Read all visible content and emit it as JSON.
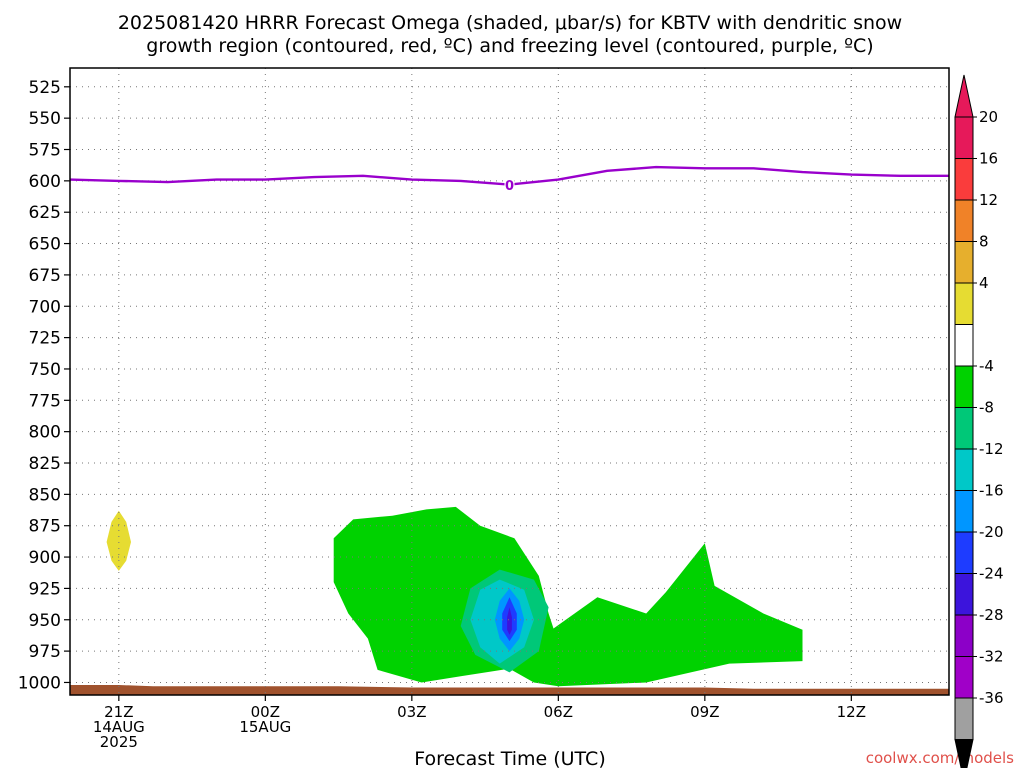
{
  "chart_data": {
    "type": "contour",
    "title_lines": [
      "2025081420 HRRR Forecast Omega (shaded, μbar/s) for KBTV with dendritic snow",
      "growth region (contoured, red, ºC) and freezing level (contoured, purple, ºC)"
    ],
    "xlabel": "Forecast Time (UTC)",
    "credit": "coolwx.com/models",
    "x_hours_range": [
      -1,
      17
    ],
    "y_pressure_range": [
      1010,
      510
    ],
    "y_ticks": [
      525,
      550,
      575,
      600,
      625,
      650,
      675,
      700,
      725,
      750,
      775,
      800,
      825,
      850,
      875,
      900,
      925,
      950,
      975,
      1000
    ],
    "y_tick_labels": [
      "525",
      "550",
      "575",
      "600",
      "625",
      "650",
      "675",
      "700",
      "725",
      "750",
      "775",
      "800",
      "825",
      "850",
      "875",
      "900",
      "925",
      "950",
      "975",
      "1000"
    ],
    "x_ticks": [
      {
        "hour": 0,
        "lines": [
          "21Z",
          "14AUG",
          "2025"
        ]
      },
      {
        "hour": 3,
        "lines": [
          "00Z",
          "15AUG"
        ]
      },
      {
        "hour": 6,
        "lines": [
          "03Z"
        ]
      },
      {
        "hour": 9,
        "lines": [
          "06Z"
        ]
      },
      {
        "hour": 12,
        "lines": [
          "09Z"
        ]
      },
      {
        "hour": 15,
        "lines": [
          "12Z"
        ]
      }
    ],
    "grid": true,
    "freezing_level": {
      "color": "#9900cc",
      "label": "0",
      "label_at": [
        8.0,
        604
      ],
      "points": [
        [
          -1,
          599
        ],
        [
          0,
          600
        ],
        [
          1,
          601
        ],
        [
          2,
          599
        ],
        [
          3,
          599
        ],
        [
          4,
          597
        ],
        [
          5,
          596
        ],
        [
          6,
          599
        ],
        [
          7,
          600
        ],
        [
          8,
          603
        ],
        [
          9,
          599
        ],
        [
          10,
          592
        ],
        [
          11,
          589
        ],
        [
          12,
          590
        ],
        [
          13,
          590
        ],
        [
          14,
          593
        ],
        [
          15,
          595
        ],
        [
          16,
          596
        ],
        [
          17,
          596
        ]
      ]
    },
    "terrain": {
      "color": "#a0522d",
      "points": [
        [
          -1,
          1002
        ],
        [
          0,
          1002
        ],
        [
          0.7,
          1003
        ],
        [
          3,
          1003
        ],
        [
          4.5,
          1003
        ],
        [
          6,
          1004
        ],
        [
          9,
          1004
        ],
        [
          12,
          1004
        ],
        [
          13,
          1005
        ],
        [
          17,
          1005
        ]
      ]
    },
    "omega_regions": [
      {
        "level": "4 to 8",
        "color": "#e6dc32",
        "points": [
          [
            0.0,
            863
          ],
          [
            0.15,
            872
          ],
          [
            0.25,
            888
          ],
          [
            0.15,
            903
          ],
          [
            0.0,
            911
          ],
          [
            -0.15,
            903
          ],
          [
            -0.25,
            888
          ],
          [
            -0.15,
            872
          ]
        ]
      },
      {
        "level": "-4 to -8",
        "color": "#00d200",
        "points": [
          [
            6.9,
            860
          ],
          [
            7.4,
            875
          ],
          [
            8.1,
            885
          ],
          [
            8.6,
            915
          ],
          [
            8.8,
            945
          ],
          [
            8.9,
            957
          ],
          [
            9.8,
            932
          ],
          [
            10.8,
            945
          ],
          [
            11.2,
            928
          ],
          [
            12.0,
            889
          ],
          [
            12.2,
            923
          ],
          [
            13.2,
            945
          ],
          [
            14.0,
            958
          ],
          [
            14.0,
            983
          ],
          [
            12.5,
            985
          ],
          [
            10.8,
            1000
          ],
          [
            9.0,
            1003
          ],
          [
            8.5,
            1000
          ],
          [
            8.0,
            989
          ],
          [
            7.0,
            995
          ],
          [
            6.2,
            1000
          ],
          [
            5.3,
            990
          ],
          [
            5.1,
            965
          ],
          [
            4.7,
            945
          ],
          [
            4.4,
            920
          ],
          [
            4.4,
            885
          ],
          [
            4.8,
            870
          ],
          [
            5.6,
            867
          ],
          [
            6.3,
            862
          ]
        ]
      },
      {
        "level": "-8 to -12",
        "color": "#00c878",
        "points": [
          [
            7.8,
            910
          ],
          [
            8.5,
            918
          ],
          [
            8.8,
            940
          ],
          [
            8.6,
            975
          ],
          [
            8.0,
            992
          ],
          [
            7.3,
            978
          ],
          [
            7.0,
            955
          ],
          [
            7.2,
            925
          ]
        ]
      },
      {
        "level": "-12 to -16",
        "color": "#00c8c8",
        "points": [
          [
            7.8,
            918
          ],
          [
            8.3,
            926
          ],
          [
            8.5,
            950
          ],
          [
            8.3,
            972
          ],
          [
            7.8,
            985
          ],
          [
            7.4,
            972
          ],
          [
            7.2,
            950
          ],
          [
            7.4,
            926
          ]
        ]
      },
      {
        "level": "-16 to -20",
        "color": "#0096ff",
        "points": [
          [
            8.0,
            925
          ],
          [
            8.2,
            935
          ],
          [
            8.3,
            950
          ],
          [
            8.2,
            965
          ],
          [
            8.0,
            975
          ],
          [
            7.8,
            965
          ],
          [
            7.7,
            950
          ],
          [
            7.8,
            935
          ]
        ]
      },
      {
        "level": "-20 to -24",
        "color": "#1e3cff",
        "points": [
          [
            8.0,
            932
          ],
          [
            8.15,
            945
          ],
          [
            8.15,
            958
          ],
          [
            8.0,
            967
          ],
          [
            7.85,
            958
          ],
          [
            7.85,
            945
          ]
        ]
      },
      {
        "level": "-24 to -28",
        "color": "#3c14dc",
        "points": [
          [
            8.0,
            940
          ],
          [
            8.05,
            948
          ],
          [
            8.05,
            958
          ],
          [
            8.0,
            962
          ],
          [
            7.95,
            958
          ],
          [
            7.95,
            948
          ]
        ]
      }
    ],
    "colorbar": {
      "labels": [
        "20",
        "16",
        "12",
        "8",
        "4",
        "-4",
        "-8",
        "-12",
        "-16",
        "-20",
        "-24",
        "-28",
        "-32",
        "-36"
      ],
      "bins": [
        {
          "color": "#e6195a"
        },
        {
          "color": "#fa3c3c"
        },
        {
          "color": "#f08228"
        },
        {
          "color": "#e6af2d"
        },
        {
          "color": "#e6dc32"
        },
        {
          "color": "#ffffff"
        },
        {
          "color": "#00d200"
        },
        {
          "color": "#00c878"
        },
        {
          "color": "#00c8c8"
        },
        {
          "color": "#0096ff"
        },
        {
          "color": "#1e3cff"
        },
        {
          "color": "#3c14dc"
        },
        {
          "color": "#8c00c8"
        },
        {
          "color": "#a000c8"
        },
        {
          "color": "#a0a0a0"
        }
      ],
      "top_triangle_color": "#e6195a",
      "bottom_triangle_color": "#000000"
    }
  }
}
